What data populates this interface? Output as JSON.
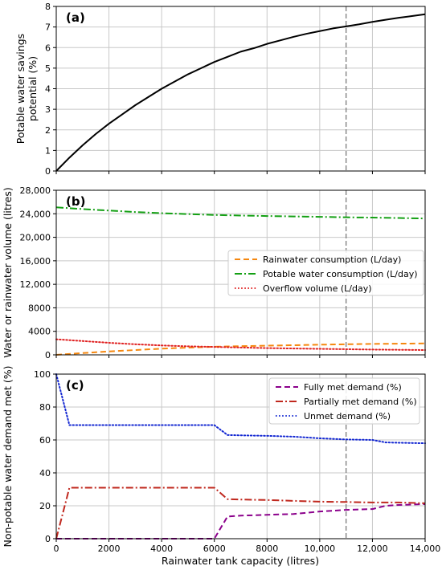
{
  "shared_xlabel": "Rainwater tank capacity (litres)",
  "vline_x": 11000,
  "colors": {
    "grid": "#c8c8c8",
    "vline": "#7a7a7a"
  },
  "chart_data": [
    {
      "panel": "(a)",
      "type": "line",
      "ylabel": [
        "Potable water savings",
        "potential (%)"
      ],
      "xlim": [
        0,
        14000
      ],
      "ylim": [
        0,
        8
      ],
      "x_ticks": [
        0,
        2000,
        4000,
        6000,
        8000,
        10000,
        12000,
        14000
      ],
      "x_tick_labels": [
        "0",
        "2000",
        "4000",
        "6000",
        "8000",
        "10,000",
        "12,000",
        "14,000"
      ],
      "y_ticks": [
        0,
        1,
        2,
        3,
        4,
        5,
        6,
        7,
        8
      ],
      "y_tick_labels": [
        "0",
        "1",
        "2",
        "3",
        "4",
        "5",
        "6",
        "7",
        "8"
      ],
      "grid": true,
      "legend": null,
      "series": [
        {
          "color": "#000000",
          "style": "solid",
          "x": [
            0,
            500,
            1000,
            1500,
            2000,
            2500,
            3000,
            3500,
            4000,
            4500,
            5000,
            5500,
            6000,
            6500,
            7000,
            7500,
            8000,
            8500,
            9000,
            9500,
            10000,
            10500,
            11000,
            11500,
            12000,
            12500,
            13000,
            13500,
            14000
          ],
          "y": [
            0,
            0.65,
            1.25,
            1.8,
            2.3,
            2.75,
            3.2,
            3.6,
            4.0,
            4.35,
            4.7,
            5.0,
            5.3,
            5.55,
            5.8,
            5.97,
            6.18,
            6.35,
            6.52,
            6.67,
            6.8,
            6.93,
            7.03,
            7.13,
            7.25,
            7.35,
            7.45,
            7.53,
            7.62
          ]
        }
      ]
    },
    {
      "panel": "(b)",
      "type": "line",
      "ylabel": [
        "Water or rainwater volume (litres)"
      ],
      "xlim": [
        0,
        14000
      ],
      "ylim": [
        0,
        28000
      ],
      "x_ticks": [
        0,
        2000,
        4000,
        6000,
        8000,
        10000,
        12000,
        14000
      ],
      "x_tick_labels": [
        "0",
        "2000",
        "4000",
        "6000",
        "8000",
        "10,000",
        "12,000",
        "14,000"
      ],
      "y_ticks": [
        0,
        4000,
        8000,
        12000,
        16000,
        20000,
        24000,
        28000
      ],
      "y_tick_labels": [
        "0",
        "4000",
        "8000",
        "12,000",
        "16,000",
        "20,000",
        "24,000",
        "28,000"
      ],
      "grid": true,
      "legend": "center-right",
      "series": [
        {
          "name": "Rainwater consumption (L/day)",
          "color": "#f5870f",
          "style": "dashed",
          "x": [
            0,
            1000,
            2000,
            3000,
            4000,
            5000,
            6000,
            7000,
            8000,
            9000,
            10000,
            11000,
            12000,
            13000,
            14000
          ],
          "y": [
            0,
            300,
            580,
            820,
            1050,
            1230,
            1380,
            1480,
            1560,
            1640,
            1730,
            1800,
            1860,
            1900,
            1950
          ]
        },
        {
          "name": "Potable water consumption (L/day)",
          "color": "#14a014",
          "style": "dashdot",
          "x": [
            0,
            1000,
            2000,
            3000,
            4000,
            5000,
            6000,
            7000,
            8000,
            9000,
            10000,
            11000,
            12000,
            13000,
            14000
          ],
          "y": [
            25100,
            24800,
            24550,
            24300,
            24100,
            23950,
            23800,
            23700,
            23620,
            23550,
            23480,
            23400,
            23350,
            23280,
            23200
          ]
        },
        {
          "name": "Overflow volume (L/day)",
          "color": "#e02020",
          "style": "dotted",
          "x": [
            0,
            1000,
            2000,
            3000,
            4000,
            5000,
            6000,
            7000,
            8000,
            9000,
            10000,
            11000,
            12000,
            13000,
            14000
          ],
          "y": [
            2650,
            2350,
            2050,
            1800,
            1600,
            1450,
            1350,
            1250,
            1150,
            1080,
            1020,
            960,
            900,
            860,
            820
          ]
        }
      ]
    },
    {
      "panel": "(c)",
      "type": "line",
      "ylabel": [
        "Non-potable water demand met (%)"
      ],
      "xlim": [
        0,
        14000
      ],
      "ylim": [
        0,
        100
      ],
      "x_ticks": [
        0,
        2000,
        4000,
        6000,
        8000,
        10000,
        12000,
        14000
      ],
      "x_tick_labels": [
        "0",
        "2000",
        "4000",
        "6000",
        "8000",
        "10,000",
        "12,000",
        "14,000"
      ],
      "y_ticks": [
        0,
        20,
        40,
        60,
        80,
        100
      ],
      "y_tick_labels": [
        "0",
        "20",
        "40",
        "60",
        "80",
        "100"
      ],
      "grid": true,
      "legend": "top-right",
      "series": [
        {
          "name": "Fully met demand (%)",
          "color": "#8b008b",
          "style": "dashed",
          "x": [
            0,
            500,
            1000,
            2000,
            4000,
            6000,
            6500,
            7000,
            8000,
            9000,
            10000,
            11000,
            12000,
            12500,
            13000,
            14000
          ],
          "y": [
            0,
            0,
            0,
            0,
            0,
            0,
            13.5,
            14,
            14.5,
            15,
            16.5,
            17.5,
            18,
            20,
            20.5,
            21
          ]
        },
        {
          "name": "Partially met demand (%)",
          "color": "#c0281e",
          "style": "dashdot",
          "x": [
            0,
            500,
            1000,
            2000,
            4000,
            6000,
            6500,
            7000,
            8000,
            9000,
            10000,
            11000,
            12000,
            13000,
            14000
          ],
          "y": [
            0,
            31,
            31,
            31,
            31,
            31,
            24,
            23.8,
            23.5,
            23,
            22.5,
            22.3,
            22,
            22,
            21.5
          ]
        },
        {
          "name": "Unmet demand (%)",
          "color": "#1428d2",
          "style": "dotted",
          "x": [
            0,
            500,
            1000,
            2000,
            4000,
            6000,
            6500,
            7000,
            8000,
            9000,
            10000,
            11000,
            12000,
            12500,
            13000,
            14000
          ],
          "y": [
            100,
            69,
            69,
            69,
            69,
            69,
            63,
            62.8,
            62.5,
            62,
            61,
            60.3,
            60,
            58.5,
            58.3,
            58
          ]
        }
      ]
    }
  ]
}
